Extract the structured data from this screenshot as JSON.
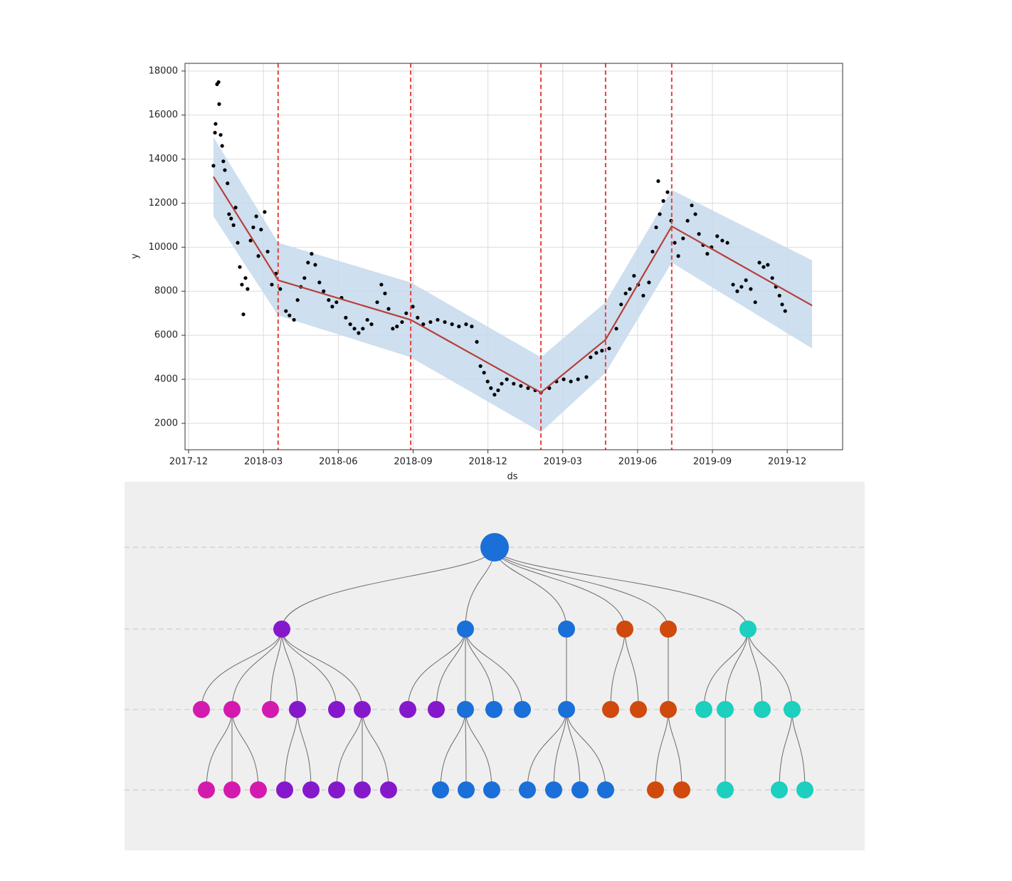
{
  "chart_data": {
    "type": "scatter",
    "xlabel": "ds",
    "ylabel": "y",
    "xlim": [
      2017.905,
      2020.102
    ],
    "ylim": [
      800,
      18350
    ],
    "xticks": [
      {
        "value": 2017.917,
        "label": "2017-12"
      },
      {
        "value": 2018.167,
        "label": "2018-03"
      },
      {
        "value": 2018.417,
        "label": "2018-06"
      },
      {
        "value": 2018.667,
        "label": "2018-09"
      },
      {
        "value": 2018.917,
        "label": "2018-12"
      },
      {
        "value": 2019.167,
        "label": "2019-03"
      },
      {
        "value": 2019.417,
        "label": "2019-06"
      },
      {
        "value": 2019.667,
        "label": "2019-09"
      },
      {
        "value": 2019.917,
        "label": "2019-12"
      }
    ],
    "yticks": [
      2000,
      4000,
      6000,
      8000,
      10000,
      12000,
      14000,
      16000,
      18000
    ],
    "grid": true,
    "color": "#000000",
    "x": [
      2018.0,
      2018.005,
      2018.007,
      2018.012,
      2018.017,
      2018.019,
      2018.024,
      2018.029,
      2018.033,
      2018.038,
      2018.047,
      2018.052,
      2018.059,
      2018.067,
      2018.074,
      2018.081,
      2018.088,
      2018.095,
      2018.1,
      2018.107,
      2018.114,
      2018.124,
      2018.133,
      2018.143,
      2018.15,
      2018.159,
      2018.171,
      2018.181,
      2018.195,
      2018.209,
      2018.223,
      2018.242,
      2018.254,
      2018.269,
      2018.281,
      2018.292,
      2018.304,
      2018.316,
      2018.328,
      2018.34,
      2018.354,
      2018.368,
      2018.385,
      2018.397,
      2018.411,
      2018.428,
      2018.442,
      2018.457,
      2018.471,
      2018.485,
      2018.499,
      2018.514,
      2018.528,
      2018.547,
      2018.561,
      2018.573,
      2018.585,
      2018.599,
      2018.613,
      2018.63,
      2018.644,
      2018.666,
      2018.682,
      2018.701,
      2018.725,
      2018.749,
      2018.773,
      2018.797,
      2018.82,
      2018.844,
      2018.863,
      2018.88,
      2018.892,
      2018.904,
      2018.916,
      2018.927,
      2018.939,
      2018.951,
      2018.963,
      2018.98,
      2019.003,
      2019.027,
      2019.051,
      2019.075,
      2019.094,
      2019.122,
      2019.146,
      2019.17,
      2019.194,
      2019.218,
      2019.246,
      2019.26,
      2019.279,
      2019.298,
      2019.322,
      2019.346,
      2019.362,
      2019.377,
      2019.391,
      2019.405,
      2019.419,
      2019.436,
      2019.455,
      2019.467,
      2019.479,
      2019.486,
      2019.491,
      2019.503,
      2019.517,
      2019.529,
      2019.541,
      2019.553,
      2019.569,
      2019.584,
      2019.598,
      2019.61,
      2019.622,
      2019.636,
      2019.65,
      2019.664,
      2019.683,
      2019.7,
      2019.717,
      2019.736,
      2019.75,
      2019.764,
      2019.779,
      2019.795,
      2019.81,
      2019.824,
      2019.838,
      2019.852,
      2019.867,
      2019.879,
      2019.891,
      2019.9,
      2019.91
    ],
    "values": [
      13700,
      15200,
      15600,
      17400,
      17500,
      16500,
      15100,
      14600,
      13900,
      13500,
      12900,
      11500,
      11300,
      11000,
      11800,
      10200,
      9100,
      8300,
      6950,
      8600,
      8100,
      10300,
      10900,
      11400,
      9600,
      10800,
      11600,
      9800,
      8300,
      8800,
      8100,
      7100,
      6900,
      6700,
      7600,
      8200,
      8600,
      9300,
      9700,
      9200,
      8400,
      8000,
      7600,
      7300,
      7500,
      7700,
      6800,
      6500,
      6300,
      6100,
      6300,
      6700,
      6500,
      7500,
      8300,
      7900,
      7200,
      6300,
      6400,
      6600,
      7000,
      7300,
      6800,
      6500,
      6600,
      6700,
      6600,
      6500,
      6400,
      6500,
      6400,
      5700,
      4600,
      4300,
      3900,
      3600,
      3300,
      3500,
      3800,
      4000,
      3800,
      3700,
      3600,
      3500,
      3400,
      3600,
      3900,
      4000,
      3900,
      4000,
      4100,
      5000,
      5200,
      5300,
      5400,
      6300,
      7400,
      7900,
      8100,
      8700,
      8300,
      7800,
      8400,
      9800,
      10900,
      13000,
      11500,
      12100,
      12500,
      11200,
      10200,
      9600,
      10400,
      11200,
      11900,
      11500,
      10600,
      10100,
      9700,
      10000,
      10500,
      10300,
      10200,
      8300,
      8000,
      8200,
      8500,
      8100,
      7500,
      9300,
      9100,
      9200,
      8600,
      8200,
      7800,
      7400,
      7100
    ],
    "trend": {
      "x": [
        2018.0,
        2018.216,
        2018.659,
        2019.094,
        2019.31,
        2019.531,
        2020.0
      ],
      "values": [
        13200,
        8500,
        6700,
        3400,
        5800,
        10950,
        7350
      ],
      "color": "#b5403a"
    },
    "band": {
      "x": [
        2018.0,
        2018.216,
        2018.659,
        2019.094,
        2019.31,
        2019.531,
        2020.0
      ],
      "lower": [
        11400,
        6900,
        5000,
        1600,
        4300,
        9300,
        5400
      ],
      "upper": [
        15000,
        10200,
        8400,
        5000,
        7500,
        12600,
        9400
      ],
      "color": "#c6d9ec"
    },
    "changepoints": {
      "x": [
        2018.216,
        2018.659,
        2019.094,
        2019.31,
        2019.531
      ],
      "color": "#e8413b"
    }
  }
}
